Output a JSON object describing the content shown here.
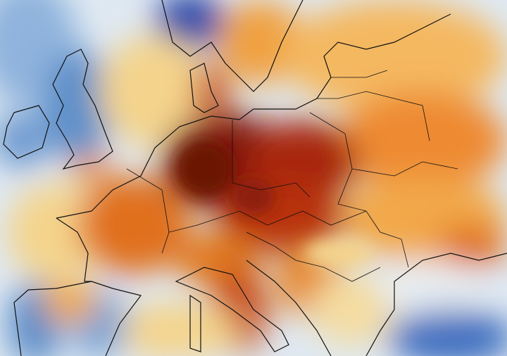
{
  "map": {
    "region": "Europe",
    "palette": {
      "background": "#dfe9f2",
      "cold_strong": "#2a48a8",
      "cold": "#5d8fc9",
      "neutral": "#f4d48c",
      "warm": "#f0a040",
      "hot": "#c8400e",
      "hottest": "#7e1808",
      "border": "#111111"
    }
  }
}
